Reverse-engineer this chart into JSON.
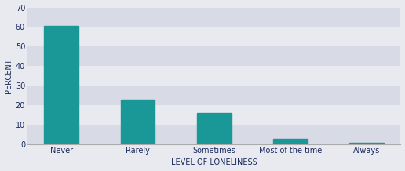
{
  "categories": [
    "Never",
    "Rarely",
    "Sometimes",
    "Most of the time",
    "Always"
  ],
  "values": [
    60.5,
    23.0,
    16.0,
    3.0,
    1.0
  ],
  "bar_color": "#1a9898",
  "bar_edgecolor": "#1a9898",
  "xlabel": "LEVEL OF LONELINESS",
  "ylabel": "PERCENT",
  "ylim": [
    0,
    70
  ],
  "yticks": [
    0,
    10,
    20,
    30,
    40,
    50,
    60,
    70
  ],
  "xlabel_fontsize": 7.0,
  "ylabel_fontsize": 7.0,
  "tick_fontsize": 7.0,
  "text_color": "#1a2a5e",
  "stripe_colors": [
    "#d8dbe6",
    "#e8eaef"
  ],
  "fig_facecolor": "#e8eaef",
  "spine_color": "#aaaaaa",
  "bar_width": 0.45
}
